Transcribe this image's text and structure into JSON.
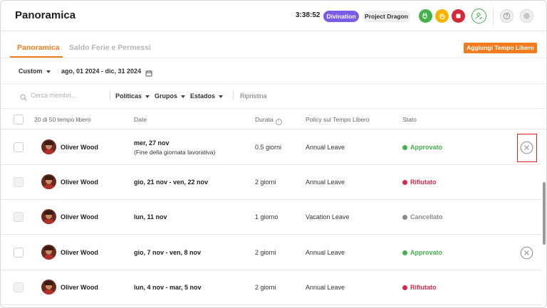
{
  "header": {
    "title": "Panoramica",
    "clock": "3:38:52",
    "workspace_badge": "Divination",
    "project_badge": "Project Dragon",
    "icons": [
      "plug-icon",
      "hand-icon",
      "stop-icon",
      "user-status-icon",
      "help-icon",
      "settings-icon"
    ]
  },
  "tabs": [
    {
      "label": "Panoramica",
      "active": true
    },
    {
      "label": "Saldo Ferie e Permessi",
      "active": false
    }
  ],
  "add_button": "Aggiungi Tempo Libero",
  "range": {
    "preset": "Custom",
    "dates": "ago, 01 2024 - dic, 31 2024"
  },
  "filters": {
    "search_placeholder": "Cerca membri...",
    "politicas": "Políticas",
    "grupos": "Grupos",
    "estados": "Estados",
    "reset": "Ripristina"
  },
  "table": {
    "headers": {
      "count": "20 di 50 tempo libero",
      "date": "Date",
      "duration": "Durata",
      "policy": "Policy sul Tempo Libero",
      "status": "Stato"
    },
    "rows": [
      {
        "name": "Oliver Wood",
        "date": "mer, 27 nov",
        "date_note": "(Fine della giornata lavorativa)",
        "duration": "0.5 giorni",
        "policy": "Annual Leave",
        "status": "Approvato",
        "status_color": "#43b04a"
      },
      {
        "name": "Oliver Wood",
        "date": "gio, 21 nov - ven, 22 nov",
        "date_note": "",
        "duration": "2 giorni",
        "policy": "Annual Leave",
        "status": "Rifiutato",
        "status_color": "#d42a4a"
      },
      {
        "name": "Oliver Wood",
        "date": "lun, 11 nov",
        "date_note": "",
        "duration": "1 giorno",
        "policy": "Vacation Leave",
        "status": "Cancellato",
        "status_color": "#8a8a8a"
      },
      {
        "name": "Oliver Wood",
        "date": "gio, 7 nov - ven, 8 nov",
        "date_note": "",
        "duration": "2 giorni",
        "policy": "Annual Leave",
        "status": "Approvato",
        "status_color": "#43b04a"
      },
      {
        "name": "Oliver Wood",
        "date": "lun, 4 nov - mar, 5 nov",
        "date_note": "",
        "duration": "2 giorni",
        "policy": "Annual Leave",
        "status": "Rifiutato",
        "status_color": "#d42a4a"
      }
    ]
  },
  "colors": {
    "accent": "#f07c1e",
    "approved": "#43b04a",
    "rejected": "#d42a4a",
    "cancelled": "#8a8a8a",
    "highlight": "#e02020"
  }
}
